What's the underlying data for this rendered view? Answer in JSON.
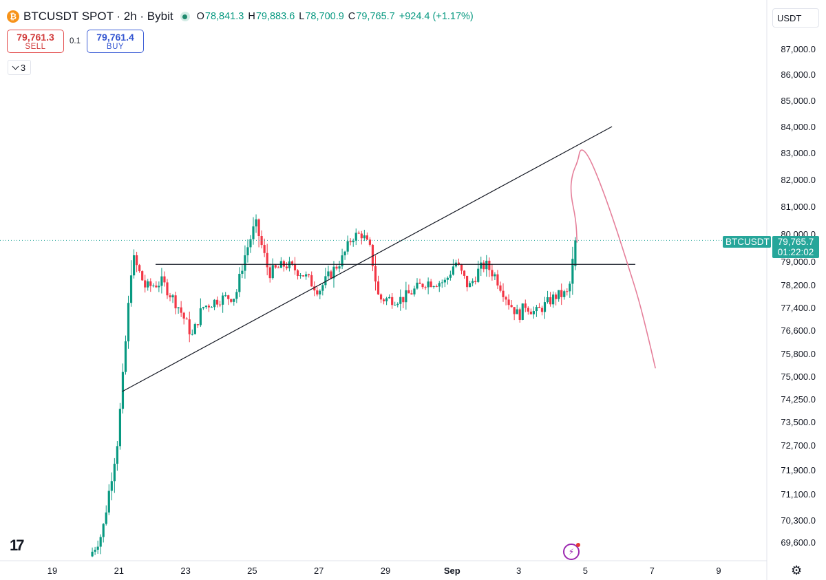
{
  "header": {
    "symbol_title": "BTCUSDT SPOT · 2h · Bybit",
    "ohlc": {
      "o_label": "O",
      "o": "78,841.3",
      "h_label": "H",
      "h": "79,883.6",
      "l_label": "L",
      "l": "78,700.9",
      "c_label": "C",
      "c": "79,765.7",
      "change": "+924.4 (+1.17%)"
    }
  },
  "trade": {
    "sell_price": "79,761.3",
    "sell_label": "SELL",
    "spread": "0.1",
    "buy_price": "79,761.4",
    "buy_label": "BUY"
  },
  "indicators_toggle": "3",
  "currency_select": "USDT",
  "price_tag": {
    "symbol": "BTCUSDT",
    "price": "79,765.7",
    "countdown": "01:22:02"
  },
  "colors": {
    "up": "#089981",
    "down": "#f23645",
    "accent": "#26a69a",
    "annotation": "#e57f9a"
  },
  "icons": {
    "logo": "bitcoin-icon",
    "tv": "tradingview-logo-icon",
    "bolt": "lightning-icon",
    "settings": "gear-icon"
  },
  "chart_data": {
    "type": "candlestick",
    "timeframe": "2h",
    "y_ticks": [
      "87,000.0",
      "86,000.0",
      "85,000.0",
      "84,000.0",
      "83,000.0",
      "82,000.0",
      "81,000.0",
      "80,000.0",
      "79,000.0",
      "78,200.0",
      "77,400.0",
      "76,600.0",
      "75,800.0",
      "75,000.0",
      "74,250.0",
      "73,500.0",
      "72,700.0",
      "71,900.0",
      "71,100.0",
      "70,300.0",
      "69,600.0"
    ],
    "x_ticks": [
      "19",
      "21",
      "23",
      "25",
      "27",
      "29",
      "Sep",
      "3",
      "5",
      "7",
      "9"
    ],
    "x_tick_positions": [
      19,
      21,
      23,
      25,
      27,
      29,
      31,
      33,
      35,
      37,
      39
    ],
    "x_range": [
      18.1,
      39.6
    ],
    "last_price": 79765.7,
    "anchors": [
      [
        20.2,
        69300
      ],
      [
        20.5,
        69900
      ],
      [
        20.75,
        71500
      ],
      [
        20.95,
        72800
      ],
      [
        21.1,
        74700
      ],
      [
        21.3,
        77700
      ],
      [
        21.4,
        79200
      ],
      [
        21.8,
        78100
      ],
      [
        22.3,
        78300
      ],
      [
        22.8,
        77400
      ],
      [
        23.2,
        76400
      ],
      [
        23.5,
        77400
      ],
      [
        24,
        77700
      ],
      [
        24.5,
        77800
      ],
      [
        24.75,
        79100
      ],
      [
        25.1,
        80400
      ],
      [
        25.5,
        78600
      ],
      [
        26,
        78900
      ],
      [
        26.5,
        78600
      ],
      [
        27,
        78000
      ],
      [
        27.3,
        78500
      ],
      [
        27.7,
        79100
      ],
      [
        28,
        79900
      ],
      [
        28.3,
        80000
      ],
      [
        28.55,
        79400
      ],
      [
        28.8,
        77700
      ],
      [
        29.5,
        77700
      ],
      [
        30.2,
        78300
      ],
      [
        30.8,
        78300
      ],
      [
        31.1,
        79000
      ],
      [
        31.5,
        78100
      ],
      [
        31.8,
        78700
      ],
      [
        32,
        78900
      ],
      [
        32.3,
        78500
      ],
      [
        32.7,
        77600
      ],
      [
        33,
        77100
      ],
      [
        33.2,
        77500
      ],
      [
        33.5,
        77200
      ],
      [
        33.8,
        77500
      ],
      [
        34.1,
        77800
      ],
      [
        34.5,
        77900
      ],
      [
        34.7,
        79765.7
      ]
    ],
    "trendlines": [
      {
        "name": "rising-trendline",
        "from": [
          21.1,
          74500
        ],
        "to": [
          35.8,
          84000
        ]
      },
      {
        "name": "horizontal-resistance",
        "from": [
          22.1,
          78900
        ],
        "to": [
          36.5,
          78900
        ]
      }
    ],
    "annotation": {
      "name": "forecast-path",
      "color": "#e57f9a"
    }
  }
}
